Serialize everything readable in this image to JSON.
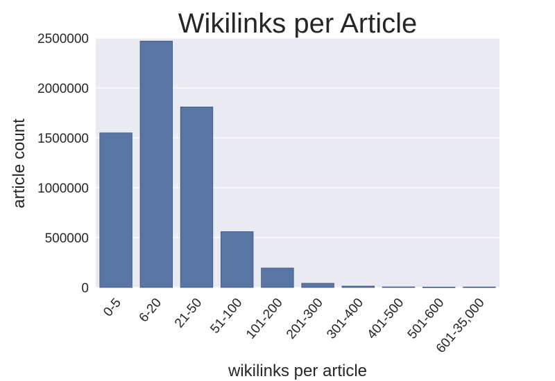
{
  "chart_data": {
    "type": "bar",
    "title": "Wikilinks per Article",
    "xlabel": "wikilinks per article",
    "ylabel": "article count",
    "categories": [
      "0-5",
      "6-20",
      "21-50",
      "51-100",
      "101-200",
      "201-300",
      "301-400",
      "401-500",
      "501-600",
      "601-35,000"
    ],
    "values": [
      1550000,
      2470000,
      1810000,
      560000,
      195000,
      42000,
      14000,
      6000,
      4000,
      5000
    ],
    "ylim": [
      0,
      2500000
    ],
    "yticks": [
      0,
      500000,
      1000000,
      1500000,
      2000000,
      2500000
    ],
    "ytick_labels": [
      "0",
      "500000",
      "1000000",
      "1500000",
      "2000000",
      "2500000"
    ],
    "grid": true,
    "colors": {
      "bar": "#5975a4",
      "bar_edge": "#3f5478",
      "plot_background": "#eaeaf2",
      "grid": "#ffffff",
      "text": "#262626"
    }
  }
}
